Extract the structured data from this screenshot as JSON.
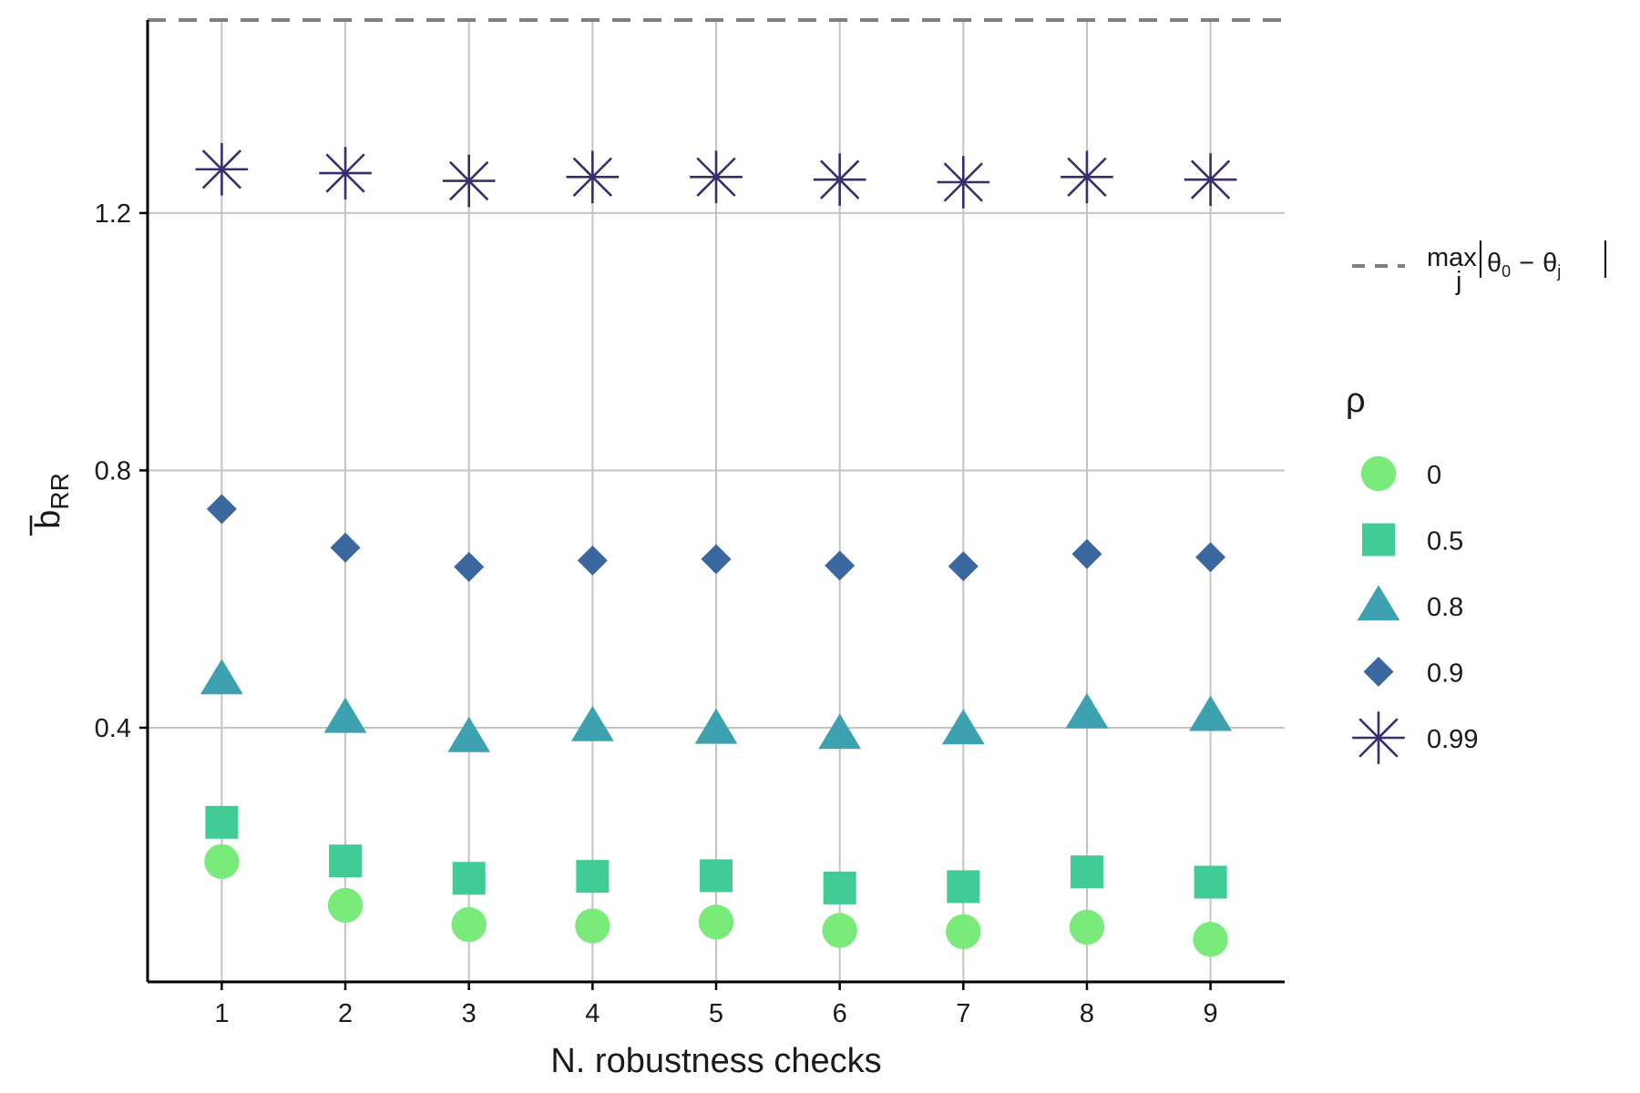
{
  "chart_data": {
    "type": "scatter",
    "title": "",
    "xlabel": "N. robustness checks",
    "ylabel": {
      "main": "b",
      "subscript": "RR"
    },
    "x": [
      1,
      2,
      3,
      4,
      5,
      6,
      7,
      8,
      9
    ],
    "x_ticks": [
      "1",
      "2",
      "3",
      "4",
      "5",
      "6",
      "7",
      "8",
      "9"
    ],
    "y_ticks": [
      0.4,
      0.8,
      1.2
    ],
    "y_tick_labels": [
      "0.4",
      "0.8",
      "1.2"
    ],
    "xlim": [
      0.4,
      9.6
    ],
    "ylim": [
      0.005,
      1.5
    ],
    "grid": true,
    "reference_line": {
      "value": 1.5,
      "style": "dashed",
      "color": "#808080",
      "label": {
        "max": "max",
        "sub_j": "j",
        "theta": "θ",
        "sub_0": "0",
        "minus": "−",
        "sub_j2": "j"
      }
    },
    "legend": {
      "title": "ρ",
      "position": "right"
    },
    "series": [
      {
        "name": "0",
        "marker": "circle",
        "color": "#7AEB7A",
        "values": [
          0.192,
          0.124,
          0.094,
          0.092,
          0.098,
          0.085,
          0.083,
          0.09,
          0.071
        ]
      },
      {
        "name": "0.5",
        "marker": "square",
        "color": "#40CC94",
        "values": [
          0.253,
          0.193,
          0.166,
          0.169,
          0.17,
          0.151,
          0.153,
          0.176,
          0.16
        ]
      },
      {
        "name": "0.8",
        "marker": "triangle",
        "color": "#3EA1B0",
        "values": [
          0.475,
          0.415,
          0.385,
          0.402,
          0.398,
          0.39,
          0.397,
          0.422,
          0.418
        ]
      },
      {
        "name": "0.9",
        "marker": "diamond",
        "color": "#3A679E",
        "values": [
          0.74,
          0.68,
          0.65,
          0.66,
          0.662,
          0.652,
          0.651,
          0.67,
          0.665
        ]
      },
      {
        "name": "0.99",
        "marker": "asterisk",
        "color": "#3A2D6E",
        "values": [
          1.268,
          1.262,
          1.25,
          1.256,
          1.256,
          1.252,
          1.248,
          1.256,
          1.252
        ]
      }
    ]
  }
}
